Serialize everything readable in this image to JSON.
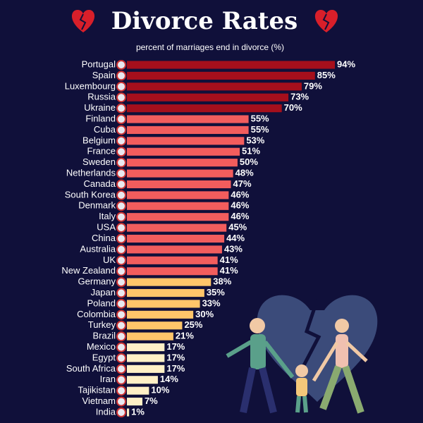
{
  "chart_data": {
    "type": "bar",
    "orientation": "horizontal",
    "title": "Divorce Rates",
    "subtitle": "percent of marriages end in divorce (%)",
    "categories": [
      "Portugal",
      "Spain",
      "Luxembourg",
      "Russia",
      "Ukraine",
      "Finland",
      "Cuba",
      "Belgium",
      "France",
      "Sweden",
      "Netherlands",
      "Canada",
      "South Korea",
      "Denmark",
      "Italy",
      "USA",
      "China",
      "Australia",
      "UK",
      "New Zealand",
      "Germany",
      "Japan",
      "Poland",
      "Colombia",
      "Turkey",
      "Brazil",
      "Mexico",
      "Egypt",
      "South Africa",
      "Iran",
      "Tajikistan",
      "Vietnam",
      "India"
    ],
    "values": [
      94,
      85,
      79,
      73,
      70,
      55,
      55,
      53,
      51,
      50,
      48,
      47,
      46,
      46,
      46,
      45,
      44,
      43,
      41,
      41,
      38,
      35,
      33,
      30,
      25,
      21,
      17,
      17,
      17,
      14,
      10,
      7,
      1
    ],
    "value_labels": [
      "94%",
      "85%",
      "79%",
      "73%",
      "70%",
      "55%",
      "55%",
      "53%",
      "51%",
      "50%",
      "48%",
      "47%",
      "46%",
      "46%",
      "46%",
      "45%",
      "44%",
      "43%",
      "41%",
      "41%",
      "38%",
      "35%",
      "33%",
      "30%",
      "25%",
      "21%",
      "17%",
      "17%",
      "17%",
      "14%",
      "10%",
      "7%",
      "1%"
    ],
    "colors": [
      "#a50f1c",
      "#a50f1c",
      "#a50f1c",
      "#a50f1c",
      "#a50f1c",
      "#f25d5d",
      "#f25d5d",
      "#f25d5d",
      "#f25d5d",
      "#f25d5d",
      "#f25d5d",
      "#f25d5d",
      "#f25d5d",
      "#f25d5d",
      "#f25d5d",
      "#f25d5d",
      "#f25d5d",
      "#f25d5d",
      "#f25d5d",
      "#f25d5d",
      "#ffc56a",
      "#ffc56a",
      "#ffc56a",
      "#ffc56a",
      "#ffc56a",
      "#ffc56a",
      "#fff0c6",
      "#fff0c6",
      "#fff0c6",
      "#fff0c6",
      "#fff0c6",
      "#fff0c6",
      "#fff0c6"
    ],
    "grid": false
  }
}
